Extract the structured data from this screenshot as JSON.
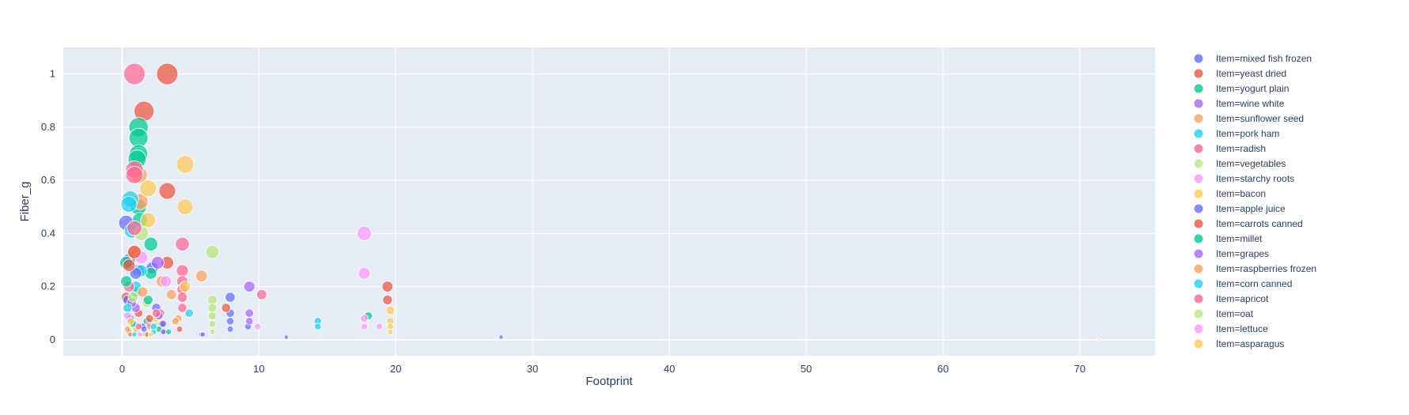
{
  "chart_data": {
    "type": "scatter",
    "xlabel": "Footprint",
    "ylabel": "Fiber_g",
    "xlim": [
      -4.3,
      75.5
    ],
    "ylim": [
      -0.06,
      1.1
    ],
    "xticks": [
      0,
      10,
      20,
      30,
      40,
      50,
      60,
      70
    ],
    "yticks": [
      0,
      0.2,
      0.4,
      0.6,
      0.8,
      1
    ],
    "legend_position": "right",
    "grid": true,
    "series": [
      {
        "name": "Item=mixed fish frozen",
        "color": "#636efa",
        "points": [
          [
            0.3,
            0.44
          ],
          [
            0.5,
            0.3
          ],
          [
            1.2,
            0.26
          ],
          [
            2.2,
            0.27
          ],
          [
            2.5,
            0.12
          ],
          [
            7.9,
            0.16
          ],
          [
            7.9,
            0.1
          ],
          [
            7.9,
            0.07
          ],
          [
            9.2,
            0.05
          ],
          [
            0.6,
            0.08
          ],
          [
            1.5,
            0.05
          ],
          [
            3.1,
            0.03
          ],
          [
            5.8,
            0.02
          ],
          [
            12.0,
            0.01
          ],
          [
            27.7,
            0.01
          ]
        ]
      },
      {
        "name": "Item=yeast dried",
        "color": "#ef553b",
        "points": [
          [
            3.3,
            1.0
          ],
          [
            1.6,
            0.86
          ],
          [
            3.3,
            0.56
          ],
          [
            3.3,
            0.29
          ],
          [
            0.3,
            0.16
          ],
          [
            19.4,
            0.2
          ],
          [
            19.4,
            0.15
          ],
          [
            1.2,
            0.1
          ],
          [
            2.9,
            0.06
          ],
          [
            7.6,
            0.12
          ],
          [
            0.5,
            0.03
          ],
          [
            1.8,
            0.02
          ]
        ]
      },
      {
        "name": "Item=yogurt plain",
        "color": "#00cc96",
        "points": [
          [
            1.2,
            0.8
          ],
          [
            1.2,
            0.76
          ],
          [
            1.2,
            0.7
          ],
          [
            1.1,
            0.68
          ],
          [
            1.2,
            0.5
          ],
          [
            2.1,
            0.36
          ],
          [
            1.3,
            0.45
          ],
          [
            2.1,
            0.25
          ],
          [
            0.3,
            0.29
          ],
          [
            1.0,
            0.18
          ],
          [
            18.0,
            0.09
          ],
          [
            1.8,
            0.07
          ],
          [
            2.7,
            0.04
          ],
          [
            0.6,
            0.02
          ]
        ]
      },
      {
        "name": "Item=wine white",
        "color": "#ab63fa",
        "points": [
          [
            2.6,
            0.29
          ],
          [
            9.3,
            0.2
          ],
          [
            9.3,
            0.1
          ],
          [
            9.3,
            0.07
          ],
          [
            1.0,
            0.12
          ],
          [
            2.0,
            0.06
          ],
          [
            3.0,
            0.03
          ]
        ]
      },
      {
        "name": "Item=sunflower seed",
        "color": "#ffa15a",
        "points": [
          [
            1.2,
            0.62
          ],
          [
            1.3,
            0.52
          ],
          [
            5.8,
            0.24
          ],
          [
            2.9,
            0.22
          ],
          [
            3.6,
            0.17
          ],
          [
            0.9,
            0.33
          ],
          [
            4.1,
            0.08
          ],
          [
            2.0,
            0.05
          ],
          [
            0.6,
            0.02
          ]
        ]
      },
      {
        "name": "Item=pork ham",
        "color": "#19d3f3",
        "points": [
          [
            0.6,
            0.53
          ],
          [
            0.7,
            0.41
          ],
          [
            0.5,
            0.51
          ],
          [
            1.4,
            0.26
          ],
          [
            1.0,
            0.2
          ],
          [
            14.3,
            0.07
          ],
          [
            14.3,
            0.05
          ],
          [
            4.9,
            0.1
          ],
          [
            2.3,
            0.03
          ]
        ]
      },
      {
        "name": "Item=radish",
        "color": "#ff6692",
        "points": [
          [
            0.9,
            1.0
          ],
          [
            0.9,
            0.64
          ],
          [
            0.9,
            0.62
          ],
          [
            4.4,
            0.36
          ],
          [
            4.4,
            0.26
          ],
          [
            4.4,
            0.22
          ],
          [
            4.4,
            0.19
          ],
          [
            4.4,
            0.16
          ],
          [
            4.4,
            0.12
          ],
          [
            10.2,
            0.17
          ],
          [
            2.8,
            0.1
          ],
          [
            0.5,
            0.2
          ]
        ]
      },
      {
        "name": "Item=vegetables",
        "color": "#b6e880",
        "points": [
          [
            6.6,
            0.33
          ],
          [
            6.6,
            0.15
          ],
          [
            6.6,
            0.12
          ],
          [
            6.6,
            0.09
          ],
          [
            1.4,
            0.4
          ],
          [
            1.8,
            0.14
          ],
          [
            6.6,
            0.06
          ],
          [
            6.6,
            0.03
          ],
          [
            2.4,
            0.06
          ]
        ]
      },
      {
        "name": "Item=starchy roots",
        "color": "#ff97ff",
        "points": [
          [
            17.7,
            0.4
          ],
          [
            17.7,
            0.25
          ],
          [
            1.4,
            0.31
          ],
          [
            3.2,
            0.22
          ],
          [
            17.7,
            0.08
          ],
          [
            17.7,
            0.05
          ],
          [
            18.8,
            0.05
          ],
          [
            9.9,
            0.05
          ],
          [
            1.1,
            0.03
          ]
        ]
      },
      {
        "name": "Item=bacon",
        "color": "#fecb52",
        "points": [
          [
            4.6,
            0.66
          ],
          [
            1.9,
            0.57
          ],
          [
            4.6,
            0.5
          ],
          [
            1.9,
            0.45
          ],
          [
            4.6,
            0.2
          ],
          [
            19.6,
            0.11
          ],
          [
            19.6,
            0.07
          ],
          [
            19.6,
            0.05
          ],
          [
            19.6,
            0.03
          ],
          [
            2.4,
            0.08
          ],
          [
            1.0,
            0.04
          ]
        ]
      },
      {
        "name": "Item=apple juice",
        "color": "#636efa",
        "points": [
          [
            0.4,
            0.15
          ],
          [
            1.0,
            0.25
          ],
          [
            1.6,
            0.04
          ],
          [
            3.0,
            0.06
          ],
          [
            7.9,
            0.04
          ]
        ]
      },
      {
        "name": "Item=carrots canned",
        "color": "#ef553b",
        "points": [
          [
            0.5,
            0.28
          ],
          [
            0.9,
            0.33
          ],
          [
            2.0,
            0.08
          ],
          [
            4.2,
            0.04
          ]
        ]
      },
      {
        "name": "Item=millet",
        "color": "#00cc96",
        "points": [
          [
            0.3,
            0.22
          ],
          [
            1.9,
            0.15
          ],
          [
            0.8,
            0.06
          ],
          [
            3.4,
            0.03
          ]
        ]
      },
      {
        "name": "Item=grapes",
        "color": "#ab63fa",
        "points": [
          [
            0.7,
            0.14
          ],
          [
            2.7,
            0.09
          ],
          [
            5.9,
            0.02
          ]
        ]
      },
      {
        "name": "Item=raspberries frozen",
        "color": "#ffa15a",
        "points": [
          [
            1.5,
            0.18
          ],
          [
            3.9,
            0.07
          ],
          [
            0.4,
            0.04
          ]
        ]
      },
      {
        "name": "Item=corn canned",
        "color": "#19d3f3",
        "points": [
          [
            0.4,
            0.12
          ],
          [
            2.3,
            0.05
          ],
          [
            0.9,
            0.02
          ]
        ]
      },
      {
        "name": "Item=apricot",
        "color": "#ff6692",
        "points": [
          [
            0.9,
            0.42
          ],
          [
            2.5,
            0.1
          ],
          [
            1.2,
            0.05
          ]
        ]
      },
      {
        "name": "Item=oat",
        "color": "#b6e880",
        "points": [
          [
            0.8,
            0.16
          ],
          [
            1.5,
            0.02
          ]
        ]
      },
      {
        "name": "Item=lettuce",
        "color": "#ff97ff",
        "points": [
          [
            0.4,
            0.09
          ],
          [
            1.3,
            0.02
          ]
        ]
      },
      {
        "name": "Item=asparagus",
        "color": "#fecb52",
        "points": [
          [
            0.6,
            0.07
          ],
          [
            2.1,
            0.02
          ],
          [
            71.4,
            0.0
          ]
        ]
      }
    ]
  }
}
